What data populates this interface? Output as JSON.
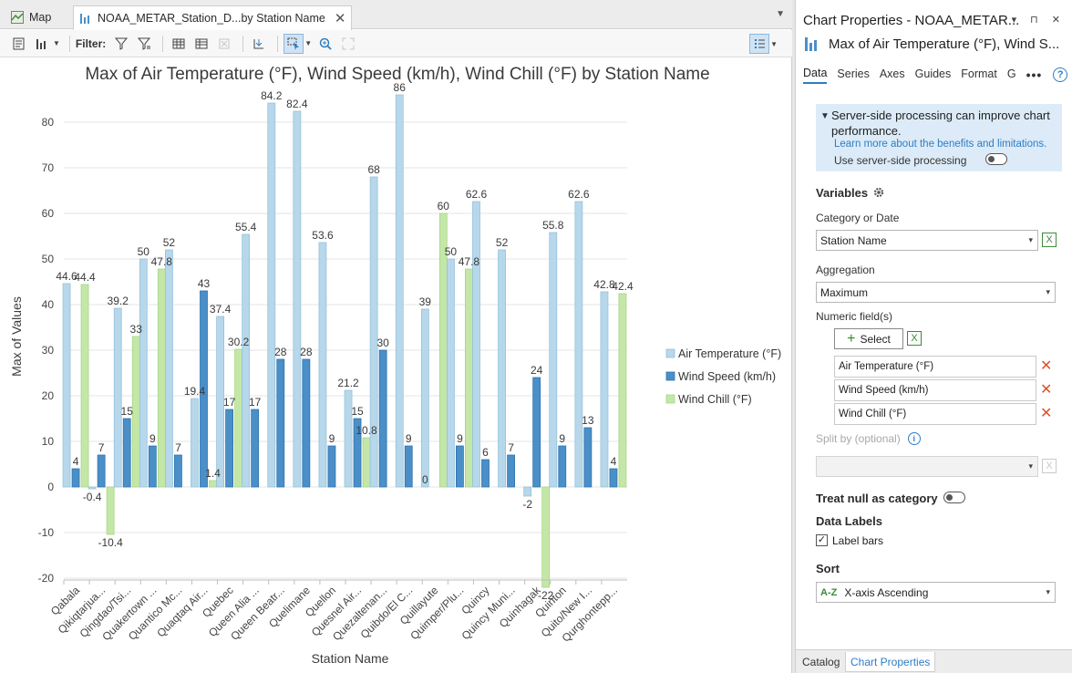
{
  "tabs": [
    {
      "label": "Map",
      "icon": "map-icon"
    },
    {
      "label": "NOAA_METAR_Station_D...by Station Name",
      "icon": "bar-chart-icon",
      "close": "✕"
    }
  ],
  "toolbar": {
    "filter_label": "Filter:"
  },
  "chart_data": {
    "type": "bar",
    "title": "Max of Air Temperature (°F), Wind Speed (km/h), Wind Chill (°F) by Station Name",
    "xlabel": "Station Name",
    "ylabel": "Max of Values",
    "ylim": [
      -20,
      86
    ],
    "yticks": [
      -20,
      -10,
      0,
      10,
      20,
      30,
      40,
      50,
      60,
      70,
      80
    ],
    "grid": true,
    "legend_position": "right",
    "categories": [
      "Qabala",
      "Qikiqtarjua...",
      "Qingdao/Tsi...",
      "Quakertown ...",
      "Quantico Mc...",
      "Quaqtaq Air...",
      "Quebec",
      "Queen Alia ...",
      "Queen Beatr...",
      "Quelimane",
      "Quellon",
      "Quesnel Air...",
      "Quezaltenan...",
      "Quibdo/El C...",
      "Quillayute",
      "Quimper/Plu...",
      "Quincy",
      "Quincy Muni...",
      "Quinhagak",
      "Quinton",
      "Quito/New I...",
      "Qurghontepp..."
    ],
    "series": [
      {
        "name": "Air Temperature (°F)",
        "color": "#b7d7ea",
        "stroke": "#95c2dd",
        "values": [
          44.6,
          -0.4,
          39.2,
          50,
          52,
          19.4,
          37.4,
          55.4,
          84.2,
          82.4,
          53.6,
          21.2,
          68,
          86,
          39,
          50,
          62.6,
          52,
          -2,
          55.8,
          62.6,
          42.8
        ],
        "labels": [
          "44.6",
          "-0.4",
          "39.2",
          "50",
          "52",
          "19.4",
          "37.4",
          "55.4",
          "84.2",
          "82.4",
          "53.6",
          "21.2",
          "68",
          "86",
          "39",
          "50",
          "62.6",
          "52",
          "-2",
          "55.8",
          "62.6",
          "42.8"
        ]
      },
      {
        "name": "Wind Speed (km/h)",
        "color": "#4a8fc8",
        "stroke": "#2e73ad",
        "values": [
          4,
          7,
          15,
          9,
          7,
          43,
          17,
          17,
          28,
          28,
          9,
          15,
          30,
          9,
          null,
          9,
          6,
          7,
          24,
          9,
          13,
          4
        ],
        "labels": [
          "4",
          "7",
          "15",
          "9",
          "7",
          "43",
          "17",
          "17",
          "28",
          "28",
          "9",
          "15",
          "30",
          "9",
          "",
          "9",
          "6",
          "7",
          "24",
          "9",
          "13",
          "4"
        ]
      },
      {
        "name": "Wind Chill (°F)",
        "color": "#c4e7a8",
        "stroke": "#a6d684",
        "values": [
          44.4,
          -10.4,
          33,
          47.8,
          null,
          1.4,
          30.2,
          null,
          null,
          null,
          null,
          10.8,
          null,
          null,
          60,
          47.8,
          null,
          null,
          -22,
          null,
          null,
          42.4
        ],
        "labels": [
          "44.4",
          "-10.4",
          "33",
          "47.8",
          "",
          "1.4",
          "30.2",
          "",
          "",
          "",
          "",
          "10.8",
          "",
          "",
          "60",
          "47.8",
          "",
          "",
          "-22",
          "",
          "",
          "42.4"
        ]
      }
    ],
    "extra_labels": [
      {
        "category_index": 14,
        "text": "0"
      }
    ]
  },
  "props": {
    "title": "Chart Properties - NOAA_METAR...",
    "header_icons": "▾ ⊓ ✕",
    "subtitle": "Max of Air Temperature (°F), Wind S...",
    "tabs": [
      "Data",
      "Series",
      "Axes",
      "Guides",
      "Format",
      "G"
    ],
    "more": "•••",
    "help": "?",
    "notice": {
      "heading": "Server-side processing can improve chart performance.",
      "link": "Learn more about the benefits and limitations.",
      "toggle_label": "Use server-side processing"
    },
    "variables_label": "Variables",
    "category_label": "Category or Date",
    "category_value": "Station Name",
    "aggregation_label": "Aggregation",
    "aggregation_value": "Maximum",
    "numeric_label": "Numeric field(s)",
    "select_button": "Select",
    "fields": [
      "Air Temperature (°F)",
      "Wind Speed (km/h)",
      "Wind Chill (°F)"
    ],
    "splitby_label": "Split by (optional)",
    "splitby_value": "",
    "treat_null_label": "Treat null as category",
    "data_labels_label": "Data Labels",
    "label_bars_label": "Label bars",
    "label_bars_checked": "✓",
    "sort_label": "Sort",
    "sort_icon": "A-Z",
    "sort_value": "X-axis Ascending"
  },
  "bottom_tabs": [
    "Catalog",
    "Chart Properties"
  ]
}
